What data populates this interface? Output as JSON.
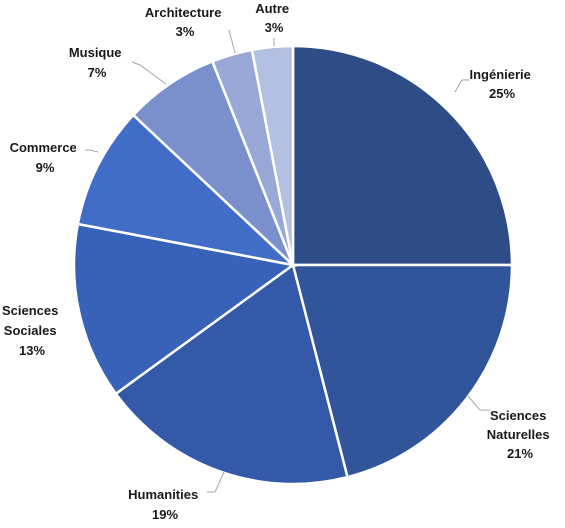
{
  "chart_data": {
    "type": "pie",
    "title": "",
    "slices": [
      {
        "label": "Ingénierie",
        "value": 25,
        "value_label": "25%",
        "color": "#2e4d87"
      },
      {
        "label": "Sciences Naturelles",
        "value": 21,
        "value_label": "21%",
        "color": "#30559a"
      },
      {
        "label": "Humanities",
        "value": 19,
        "value_label": "19%",
        "color": "#3359a8"
      },
      {
        "label": "Sciences Sociales",
        "value": 13,
        "value_label": "13%",
        "color": "#3762b8"
      },
      {
        "label": "Commerce",
        "value": 9,
        "value_label": "9%",
        "color": "#416dc7"
      },
      {
        "label": "Musique",
        "value": 7,
        "value_label": "7%",
        "color": "#7a90cc"
      },
      {
        "label": "Architecture",
        "value": 3,
        "value_label": "3%",
        "color": "#98a9d8"
      },
      {
        "label": "Autre",
        "value": 3,
        "value_label": "3%",
        "color": "#b3c0e2"
      }
    ],
    "start_angle": "12 o'clock",
    "direction": "clockwise",
    "legend": "none",
    "label_position": "outside with leader lines"
  }
}
